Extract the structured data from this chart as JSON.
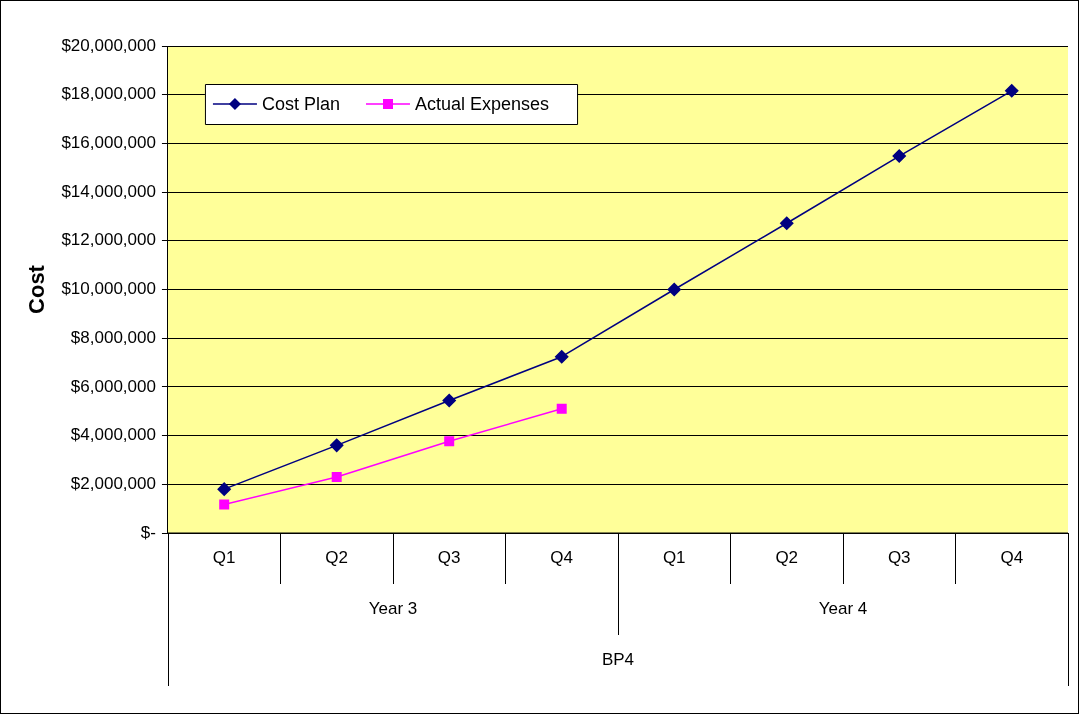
{
  "chart_data": {
    "type": "line",
    "ylabel": "Cost",
    "xlabel": "BP4",
    "annotations": [
      "Year 3",
      "Year 4"
    ],
    "categories": [
      "Q1",
      "Q2",
      "Q3",
      "Q4",
      "Q1",
      "Q2",
      "Q3",
      "Q4"
    ],
    "series": [
      {
        "name": "Cost Plan",
        "color": "#000080",
        "marker": "diamond",
        "values": [
          1800000,
          3600000,
          5440000,
          7240000,
          10000000,
          12720000,
          15480000,
          18160000
        ]
      },
      {
        "name": "Actual Expenses",
        "color": "#ff00ff",
        "marker": "square",
        "values": [
          1170000,
          2300000,
          3770000,
          5100000,
          null,
          null,
          null,
          null
        ]
      }
    ],
    "ylim": [
      0,
      20000000
    ],
    "yticks": [
      {
        "value": 0,
        "label": "$-"
      },
      {
        "value": 2000000,
        "label": "$2,000,000"
      },
      {
        "value": 4000000,
        "label": "$4,000,000"
      },
      {
        "value": 6000000,
        "label": "$6,000,000"
      },
      {
        "value": 8000000,
        "label": "$8,000,000"
      },
      {
        "value": 10000000,
        "label": "$10,000,000"
      },
      {
        "value": 12000000,
        "label": "$12,000,000"
      },
      {
        "value": 14000000,
        "label": "$14,000,000"
      },
      {
        "value": 16000000,
        "label": "$16,000,000"
      },
      {
        "value": 18000000,
        "label": "$18,000,000"
      },
      {
        "value": 20000000,
        "label": "$20,000,000"
      }
    ],
    "grid": "y",
    "legend": "top left"
  }
}
